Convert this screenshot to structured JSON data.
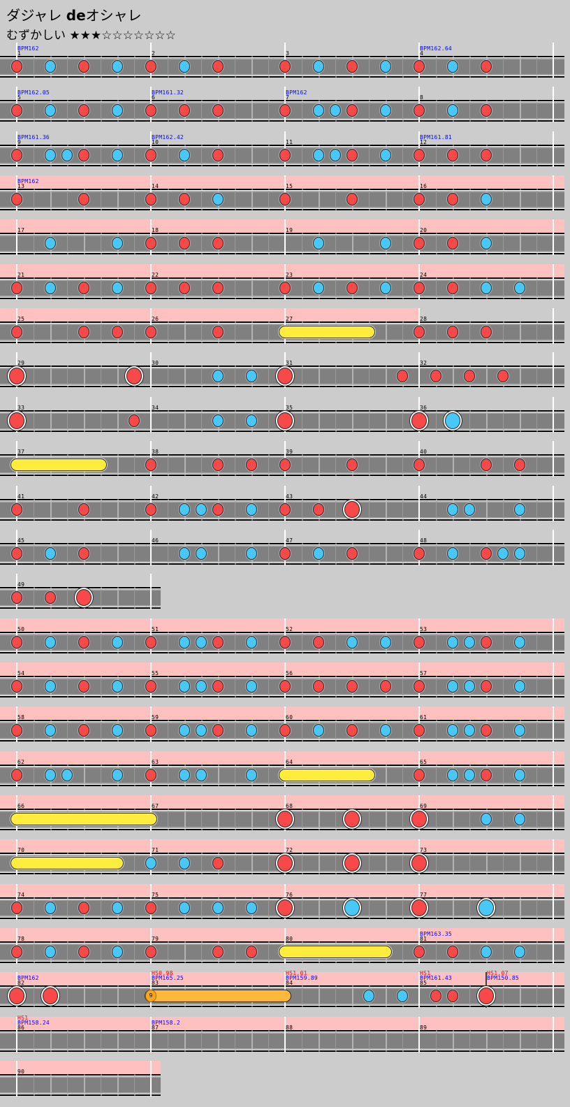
{
  "title": {
    "song_kana": "ダジャレ ",
    "song_bold": "de",
    "song_tail": "オシャレ"
  },
  "difficulty": {
    "label": "むずかしい",
    "stars": "★★★☆☆☆☆☆☆☆",
    "level": 3,
    "max": 10
  },
  "colors": {
    "background": "#cccccc",
    "lane": "#808080",
    "gogo": "#ffc0c0",
    "don": "#f84848",
    "ka": "#48c8f8",
    "drumroll": "#ffec3c",
    "balloon": "#ffb83a",
    "bpm_text": "#0000ff",
    "hs_text": "#ff0000"
  },
  "legend_chars": {
    "d": "don",
    "k": "ka",
    "D": "big don",
    "K": "big ka",
    "y": "drumroll start",
    "b": "balloon start",
    "e": "roll end",
    ".": "empty"
  },
  "rows": [
    {
      "measures": [
        {
          "num": "1",
          "bpm": "BPM162",
          "notes": "d.k.d.k."
        },
        {
          "num": "2",
          "notes": "d.k.d..."
        },
        {
          "num": "3",
          "notes": "d.k.d.k."
        },
        {
          "num": "4",
          "bpm": "BPM162.64",
          "notes": "d.k.d..."
        }
      ]
    },
    {
      "measures": [
        {
          "num": "5",
          "bpm": "BPM162.05",
          "notes": "d.k.d.k."
        },
        {
          "num": "6",
          "bpm": "BPM161.32",
          "notes": "d.d.d..."
        },
        {
          "num": "7",
          "bpm": "BPM162",
          "notes": "d.kkd.k."
        },
        {
          "num": "8",
          "notes": "d.k.d..."
        }
      ]
    },
    {
      "measures": [
        {
          "num": "9",
          "bpm": "BPM161.36",
          "notes": "d.kkd.k."
        },
        {
          "num": "10",
          "bpm": "BPM162.42",
          "notes": "d.k.d..."
        },
        {
          "num": "11",
          "notes": "d.kkd.k."
        },
        {
          "num": "12",
          "bpm": "BPM161.81",
          "notes": "d.d.d..."
        }
      ]
    },
    {
      "measures": [
        {
          "num": "13",
          "bpm": "BPM162",
          "gogo": true,
          "notes": "d...d..."
        },
        {
          "num": "14",
          "gogo": true,
          "notes": "d.d.k..."
        },
        {
          "num": "15",
          "gogo": true,
          "notes": "d...d..."
        },
        {
          "num": "16",
          "gogo": true,
          "notes": "d.d.k..."
        }
      ]
    },
    {
      "measures": [
        {
          "num": "17",
          "gogo": true,
          "notes": "..k...k."
        },
        {
          "num": "18",
          "gogo": true,
          "notes": "d.d.d..."
        },
        {
          "num": "19",
          "gogo": true,
          "notes": "..k...k."
        },
        {
          "num": "20",
          "gogo": true,
          "notes": "d.d.k..."
        }
      ]
    },
    {
      "measures": [
        {
          "num": "21",
          "gogo": true,
          "notes": "d.k.d.k."
        },
        {
          "num": "22",
          "gogo": true,
          "notes": "d.d.d..."
        },
        {
          "num": "23",
          "gogo": true,
          "notes": "d.k.d.k."
        },
        {
          "num": "24",
          "gogo": true,
          "notes": "d.d.k.k."
        }
      ]
    },
    {
      "measures": [
        {
          "num": "25",
          "gogo": true,
          "notes": "d...d.d."
        },
        {
          "num": "26",
          "gogo": true,
          "notes": "d...d..."
        },
        {
          "num": "27",
          "gogo": true,
          "notes": "y....e.."
        },
        {
          "num": "28",
          "notes": "d.d.d..."
        }
      ]
    },
    {
      "measures": [
        {
          "num": "29",
          "notes": "D......D"
        },
        {
          "num": "30",
          "notes": "....k.k."
        },
        {
          "num": "31",
          "notes": "D......d"
        },
        {
          "num": "32",
          "notes": ".d.d.d.."
        }
      ]
    },
    {
      "measures": [
        {
          "num": "33",
          "notes": "D......d"
        },
        {
          "num": "34",
          "notes": "....k.k."
        },
        {
          "num": "35",
          "notes": "D......."
        },
        {
          "num": "36",
          "notes": "D.K....."
        }
      ]
    },
    {
      "measures": [
        {
          "num": "37",
          "notes": "y....e.."
        },
        {
          "num": "38",
          "notes": "d...d.d."
        },
        {
          "num": "39",
          "notes": "d...d..."
        },
        {
          "num": "40",
          "notes": "d...d.d."
        }
      ]
    },
    {
      "measures": [
        {
          "num": "41",
          "notes": "d...d..."
        },
        {
          "num": "42",
          "notes": "d.kkd.k."
        },
        {
          "num": "43",
          "notes": "d.d.D..."
        },
        {
          "num": "44",
          "notes": "..kk..k."
        }
      ]
    },
    {
      "measures": [
        {
          "num": "45",
          "notes": "d.k.d..."
        },
        {
          "num": "46",
          "notes": "..kk..k."
        },
        {
          "num": "47",
          "notes": "d.k.d..."
        },
        {
          "num": "48",
          "notes": "d.k.dkk."
        }
      ]
    },
    {
      "measures": [
        {
          "num": "49",
          "notes": "d.d.D..."
        }
      ]
    },
    {
      "measures": [
        {
          "num": "50",
          "gogo": true,
          "notes": "d.k.d.k."
        },
        {
          "num": "51",
          "gogo": true,
          "notes": "d.kkd.k."
        },
        {
          "num": "52",
          "gogo": true,
          "notes": "d.d.k.k."
        },
        {
          "num": "53",
          "gogo": true,
          "notes": "d.kkd.k."
        }
      ]
    },
    {
      "measures": [
        {
          "num": "54",
          "gogo": true,
          "notes": "d.k.d.k."
        },
        {
          "num": "55",
          "gogo": true,
          "notes": "d.kkd.k."
        },
        {
          "num": "56",
          "gogo": true,
          "notes": "d.d.d.d."
        },
        {
          "num": "57",
          "gogo": true,
          "notes": "d.kkd.k."
        }
      ]
    },
    {
      "measures": [
        {
          "num": "58",
          "gogo": true,
          "notes": "d.k.d.k."
        },
        {
          "num": "59",
          "gogo": true,
          "notes": "d.kkd.k."
        },
        {
          "num": "60",
          "gogo": true,
          "notes": "d.k.d.k."
        },
        {
          "num": "61",
          "gogo": true,
          "notes": "d.kkd.k."
        }
      ]
    },
    {
      "measures": [
        {
          "num": "62",
          "gogo": true,
          "notes": "d.kk..k."
        },
        {
          "num": "63",
          "gogo": true,
          "notes": "d.kk..k."
        },
        {
          "num": "64",
          "gogo": true,
          "notes": "y....e.."
        },
        {
          "num": "65",
          "gogo": true,
          "notes": "d.kkd.k."
        }
      ]
    },
    {
      "measures": [
        {
          "num": "66",
          "gogo": true,
          "notes": "y......."
        },
        {
          "num": "67",
          "gogo": true,
          "notes": "e......."
        },
        {
          "num": "68",
          "gogo": true,
          "notes": "D...D..."
        },
        {
          "num": "69",
          "gogo": true,
          "notes": "D...k.k."
        }
      ]
    },
    {
      "measures": [
        {
          "num": "70",
          "gogo": true,
          "notes": "y.....e."
        },
        {
          "num": "71",
          "gogo": true,
          "notes": "k.k.d..."
        },
        {
          "num": "72",
          "gogo": true,
          "notes": "D...D..."
        },
        {
          "num": "73",
          "gogo": true,
          "notes": "D......."
        }
      ]
    },
    {
      "measures": [
        {
          "num": "74",
          "gogo": true,
          "notes": "d.k.d.k."
        },
        {
          "num": "75",
          "gogo": true,
          "notes": "d.k.k.k."
        },
        {
          "num": "76",
          "gogo": true,
          "notes": "D...K..."
        },
        {
          "num": "77",
          "gogo": true,
          "notes": "D...K..."
        }
      ]
    },
    {
      "measures": [
        {
          "num": "78",
          "gogo": true,
          "notes": "d.k.d.k."
        },
        {
          "num": "79",
          "gogo": true,
          "notes": "d...d.d."
        },
        {
          "num": "80",
          "gogo": true,
          "notes": "y.....e."
        },
        {
          "num": "81",
          "bpm": "BPM163.35",
          "gogo": true,
          "notes": "d.d.k.k."
        }
      ]
    },
    {
      "measures": [
        {
          "num": "82",
          "bpm": "BPM162",
          "gogo": true,
          "notes": "D.D....."
        },
        {
          "num": "83",
          "hs": "HS0.98",
          "bpm": "BPM165.25",
          "gogo": true,
          "notes": "b.......",
          "balloon_count": "9"
        },
        {
          "num": "84",
          "hs": "HS1.01",
          "bpm": "BPM159.89",
          "gogo": true,
          "notes": "e....k.k"
        },
        {
          "num": "85",
          "hs": "HS1",
          "bpm": "BPM161.43",
          "gogo": true,
          "notes": ".dd.D...",
          "events": [
            {
              "eighth": 4,
              "hs": "HS1.07",
              "bpm": "BPM150.85"
            }
          ]
        }
      ]
    },
    {
      "measures": [
        {
          "num": "86",
          "hs": "HS1",
          "bpm": "BPM158.24",
          "gogo": true,
          "notes": "........"
        },
        {
          "num": "87",
          "bpm": "BPM158.2",
          "gogo": true,
          "notes": "........"
        },
        {
          "num": "88",
          "gogo": true,
          "notes": "........"
        },
        {
          "num": "89",
          "gogo": true,
          "notes": "........"
        }
      ]
    },
    {
      "measures": [
        {
          "num": "90",
          "gogo": true,
          "notes": "........"
        }
      ]
    }
  ]
}
